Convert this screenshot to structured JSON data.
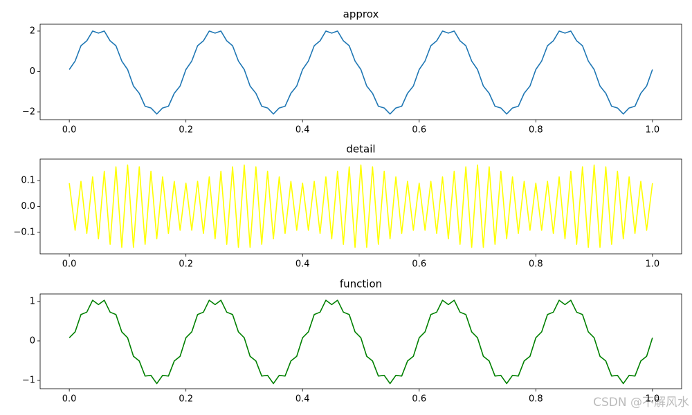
{
  "chart_data": [
    {
      "type": "line",
      "title": "approx",
      "x": [
        0,
        0.01,
        0.02,
        0.03,
        0.04,
        0.05,
        0.06,
        0.07,
        0.08,
        0.09,
        0.1,
        0.11,
        0.12,
        0.13,
        0.14,
        0.15,
        0.16,
        0.17,
        0.18,
        0.19,
        0.2,
        0.21,
        0.22,
        0.23,
        0.24,
        0.25,
        0.26,
        0.27,
        0.28,
        0.29,
        0.3,
        0.31,
        0.32,
        0.33,
        0.34,
        0.35,
        0.36,
        0.37,
        0.38,
        0.39,
        0.4,
        0.41,
        0.42,
        0.43,
        0.44,
        0.45,
        0.46,
        0.47,
        0.48,
        0.49,
        0.5,
        0.51,
        0.52,
        0.53,
        0.54,
        0.55,
        0.56,
        0.57,
        0.58,
        0.59,
        0.6,
        0.61,
        0.62,
        0.63,
        0.64,
        0.65,
        0.66,
        0.67,
        0.68,
        0.69,
        0.7,
        0.71,
        0.72,
        0.73,
        0.74,
        0.75,
        0.76,
        0.77,
        0.78,
        0.79,
        0.8,
        0.81,
        0.82,
        0.83,
        0.84,
        0.85,
        0.86,
        0.87,
        0.88,
        0.89,
        0.9,
        0.91,
        0.92,
        0.93,
        0.94,
        0.95,
        0.96,
        0.97,
        0.98,
        0.99,
        1
      ],
      "series": [
        {
          "color": "#1f77b4",
          "values": [
            0.1,
            0.518,
            1.276,
            1.518,
            2.002,
            1.9,
            2.002,
            1.518,
            1.276,
            0.518,
            0.1,
            -0.718,
            -1.076,
            -1.718,
            -1.802,
            -2.1,
            -1.802,
            -1.718,
            -1.076,
            -0.718,
            0.1,
            0.518,
            1.276,
            1.518,
            2.002,
            1.9,
            2.002,
            1.518,
            1.276,
            0.518,
            0.1,
            -0.718,
            -1.076,
            -1.718,
            -1.802,
            -2.1,
            -1.802,
            -1.718,
            -1.076,
            -0.718,
            0.1,
            0.518,
            1.276,
            1.518,
            2.002,
            1.9,
            2.002,
            1.518,
            1.276,
            0.518,
            0.1,
            -0.718,
            -1.076,
            -1.718,
            -1.802,
            -2.1,
            -1.802,
            -1.718,
            -1.076,
            -0.718,
            0.1,
            0.518,
            1.276,
            1.518,
            2.002,
            1.9,
            2.002,
            1.518,
            1.276,
            0.518,
            0.1,
            -0.718,
            -1.076,
            -1.718,
            -1.802,
            -2.1,
            -1.802,
            -1.718,
            -1.076,
            -0.718,
            0.1,
            0.518,
            1.276,
            1.518,
            2.002,
            1.9,
            2.002,
            1.518,
            1.276,
            0.518,
            0.1,
            -0.718,
            -1.076,
            -1.718,
            -1.802,
            -2.1,
            -1.802,
            -1.718,
            -1.076,
            -0.718,
            0.1
          ]
        }
      ],
      "xlim": [
        -0.05,
        1.05
      ],
      "xticks": [
        {
          "value": 0,
          "label": "0.0"
        },
        0.2,
        0.4,
        0.6,
        0.8,
        {
          "value": 1,
          "label": "1.0"
        }
      ],
      "ylim": [
        -2.38,
        2.34
      ],
      "yticks": [
        {
          "value": -2,
          "label": "−2"
        },
        0,
        2
      ]
    },
    {
      "type": "line",
      "title": "detail",
      "x": [
        0,
        0.01,
        0.02,
        0.03,
        0.04,
        0.05,
        0.06,
        0.07,
        0.08,
        0.09,
        0.1,
        0.11,
        0.12,
        0.13,
        0.14,
        0.15,
        0.16,
        0.17,
        0.18,
        0.19,
        0.2,
        0.21,
        0.22,
        0.23,
        0.24,
        0.25,
        0.26,
        0.27,
        0.28,
        0.29,
        0.3,
        0.31,
        0.32,
        0.33,
        0.34,
        0.35,
        0.36,
        0.37,
        0.38,
        0.39,
        0.4,
        0.41,
        0.42,
        0.43,
        0.44,
        0.45,
        0.46,
        0.47,
        0.48,
        0.49,
        0.5,
        0.51,
        0.52,
        0.53,
        0.54,
        0.55,
        0.56,
        0.57,
        0.58,
        0.59,
        0.6,
        0.61,
        0.62,
        0.63,
        0.64,
        0.65,
        0.66,
        0.67,
        0.68,
        0.69,
        0.7,
        0.71,
        0.72,
        0.73,
        0.74,
        0.75,
        0.76,
        0.77,
        0.78,
        0.79,
        0.8,
        0.81,
        0.82,
        0.83,
        0.84,
        0.85,
        0.86,
        0.87,
        0.88,
        0.89,
        0.9,
        0.91,
        0.92,
        0.93,
        0.94,
        0.95,
        0.96,
        0.97,
        0.98,
        0.99,
        1
      ],
      "series": [
        {
          "color": "#ffff00",
          "values": [
            0.09,
            -0.092,
            0.097,
            -0.104,
            0.114,
            -0.125,
            0.136,
            -0.146,
            0.153,
            -0.158,
            0.16,
            -0.158,
            0.153,
            -0.146,
            0.136,
            -0.125,
            0.114,
            -0.104,
            0.097,
            -0.092,
            0.09,
            -0.092,
            0.097,
            -0.104,
            0.114,
            -0.125,
            0.136,
            -0.146,
            0.153,
            -0.158,
            0.16,
            -0.158,
            0.153,
            -0.146,
            0.136,
            -0.125,
            0.114,
            -0.104,
            0.097,
            -0.092,
            0.09,
            -0.092,
            0.097,
            -0.104,
            0.114,
            -0.125,
            0.136,
            -0.146,
            0.153,
            -0.158,
            0.16,
            -0.158,
            0.153,
            -0.146,
            0.136,
            -0.125,
            0.114,
            -0.104,
            0.097,
            -0.092,
            0.09,
            -0.092,
            0.097,
            -0.104,
            0.114,
            -0.125,
            0.136,
            -0.146,
            0.153,
            -0.158,
            0.16,
            -0.158,
            0.153,
            -0.146,
            0.136,
            -0.125,
            0.114,
            -0.104,
            0.097,
            -0.092,
            0.09,
            -0.092,
            0.097,
            -0.104,
            0.114,
            -0.125,
            0.136,
            -0.146,
            0.153,
            -0.158,
            0.16,
            -0.158,
            0.153,
            -0.146,
            0.136,
            -0.125,
            0.114,
            -0.104,
            0.097,
            -0.092,
            0.09
          ]
        }
      ],
      "xlim": [
        -0.05,
        1.05
      ],
      "xticks": [
        {
          "value": 0,
          "label": "0.0"
        },
        0.2,
        0.4,
        0.6,
        0.8,
        {
          "value": 1,
          "label": "1.0"
        }
      ],
      "ylim": [
        -0.183,
        0.183
      ],
      "yticks": [
        {
          "value": -0.1,
          "label": "−0.1"
        },
        {
          "value": 0,
          "label": "0.0"
        },
        0.1
      ]
    },
    {
      "type": "line",
      "title": "function",
      "x": [
        0,
        0.01,
        0.02,
        0.03,
        0.04,
        0.05,
        0.06,
        0.07,
        0.08,
        0.09,
        0.1,
        0.11,
        0.12,
        0.13,
        0.14,
        0.15,
        0.16,
        0.17,
        0.18,
        0.19,
        0.2,
        0.21,
        0.22,
        0.23,
        0.24,
        0.25,
        0.26,
        0.27,
        0.28,
        0.29,
        0.3,
        0.31,
        0.32,
        0.33,
        0.34,
        0.35,
        0.36,
        0.37,
        0.38,
        0.39,
        0.4,
        0.41,
        0.42,
        0.43,
        0.44,
        0.45,
        0.46,
        0.47,
        0.48,
        0.49,
        0.5,
        0.51,
        0.52,
        0.53,
        0.54,
        0.55,
        0.56,
        0.57,
        0.58,
        0.59,
        0.6,
        0.61,
        0.62,
        0.63,
        0.64,
        0.65,
        0.66,
        0.67,
        0.68,
        0.69,
        0.7,
        0.71,
        0.72,
        0.73,
        0.74,
        0.75,
        0.76,
        0.77,
        0.78,
        0.79,
        0.8,
        0.81,
        0.82,
        0.83,
        0.84,
        0.85,
        0.86,
        0.87,
        0.88,
        0.89,
        0.9,
        0.91,
        0.92,
        0.93,
        0.94,
        0.95,
        0.96,
        0.97,
        0.98,
        0.99,
        1
      ],
      "series": [
        {
          "color": "#008000",
          "values": [
            0.08,
            0.229,
            0.668,
            0.729,
            1.031,
            0.92,
            1.031,
            0.729,
            0.668,
            0.229,
            0.08,
            -0.389,
            -0.508,
            -0.889,
            -0.871,
            -1.08,
            -0.871,
            -0.889,
            -0.508,
            -0.389,
            0.08,
            0.229,
            0.668,
            0.729,
            1.031,
            0.92,
            1.031,
            0.729,
            0.668,
            0.229,
            0.08,
            -0.389,
            -0.508,
            -0.889,
            -0.871,
            -1.08,
            -0.871,
            -0.889,
            -0.508,
            -0.389,
            0.08,
            0.229,
            0.668,
            0.729,
            1.031,
            0.92,
            1.031,
            0.729,
            0.668,
            0.229,
            0.08,
            -0.389,
            -0.508,
            -0.889,
            -0.871,
            -1.08,
            -0.871,
            -0.889,
            -0.508,
            -0.389,
            0.08,
            0.229,
            0.668,
            0.729,
            1.031,
            0.92,
            1.031,
            0.729,
            0.668,
            0.229,
            0.08,
            -0.389,
            -0.508,
            -0.889,
            -0.871,
            -1.08,
            -0.871,
            -0.889,
            -0.508,
            -0.389,
            0.08,
            0.229,
            0.668,
            0.729,
            1.031,
            0.92,
            1.031,
            0.729,
            0.668,
            0.229,
            0.08,
            -0.389,
            -0.508,
            -0.889,
            -0.871,
            -1.08,
            -0.871,
            -0.889,
            -0.508,
            -0.389,
            0.08
          ]
        }
      ],
      "xlim": [
        -0.05,
        1.05
      ],
      "xticks": [
        {
          "value": 0,
          "label": "0.0"
        },
        0.2,
        0.4,
        0.6,
        0.8,
        {
          "value": 1,
          "label": "1.0"
        }
      ],
      "ylim": [
        -1.21,
        1.19
      ],
      "yticks": [
        {
          "value": -1,
          "label": "−1"
        },
        0,
        1
      ]
    }
  ],
  "watermark": "CSDN @不解风水"
}
